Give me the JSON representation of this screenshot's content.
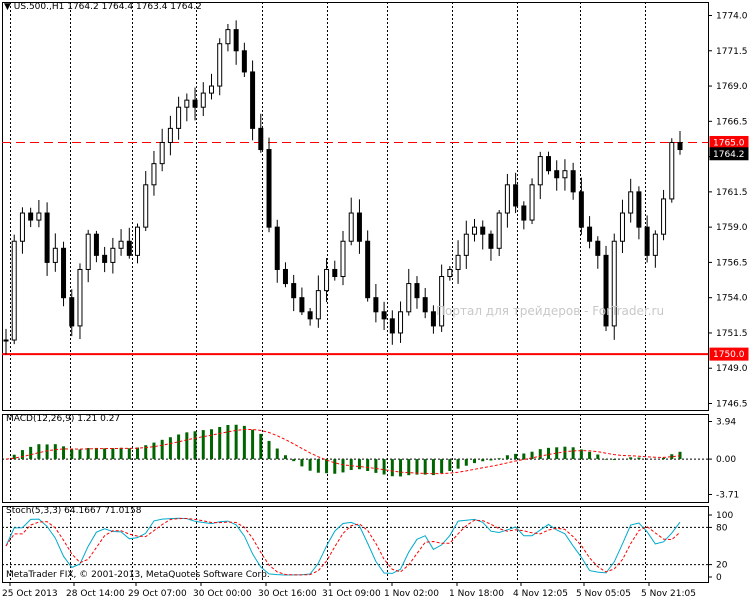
{
  "main_header": {
    "marker": "▼",
    "symbol": "US.500.,H1",
    "ohlc": "1764.2 1764.4 1763.4 1764.2"
  },
  "price_axis_labels": [
    "1774.0",
    "1771.5",
    "1769.0",
    "1766.5",
    "1764.0",
    "1761.5",
    "1759.0",
    "1756.5",
    "1754.0",
    "1751.5",
    "1749.0",
    "1746.5"
  ],
  "level_tags": {
    "upper": "1765.0",
    "current": "1764.2",
    "lower": "1750.0"
  },
  "watermark": "Портал для трейдеров - ForTrader.ru",
  "macd": {
    "header": "MACD(12,26,9) 1.21 0.27",
    "axis": [
      "3.94",
      "0.00",
      "-3.71"
    ]
  },
  "stoch": {
    "header": "Stoch(5,3,3) 64.1667 71.0158",
    "axis": [
      "100",
      "80",
      "20",
      "0"
    ]
  },
  "copyright": "MetaTrader FIX, © 2001-2013, MetaQuotes Software Corp.",
  "time_labels": [
    "25 Oct 2013",
    "28 Oct 14:00",
    "29 Oct 07:00",
    "30 Oct 00:00",
    "30 Oct 16:00",
    "31 Oct 09:00",
    "1 Nov 02:00",
    "1 Nov 18:00",
    "4 Nov 12:05",
    "5 Nov 05:05",
    "5 Nov 21:05"
  ],
  "colors": {
    "bg": "#ffffff",
    "grid": "#000000",
    "level": "#ff0000",
    "macd_hist": "#006400",
    "signal": "#ff0000",
    "stoch_main": "#00aacc"
  },
  "chart_data": {
    "type": "candlestick",
    "timeframe": "H1",
    "ylim": [
      1746.5,
      1774.0
    ],
    "levels": {
      "dashed": 1765.0,
      "solid": 1750.0
    },
    "close_path": [
      1751,
      1758,
      1760,
      1759.5,
      1760,
      1756.5,
      1757.5,
      1754,
      1752,
      1756,
      1758.5,
      1757,
      1756.5,
      1757.5,
      1758,
      1757,
      1759,
      1762,
      1763.5,
      1765,
      1766,
      1767.5,
      1768,
      1767.5,
      1768.5,
      1769,
      1772,
      1773,
      1771.5,
      1770,
      1766,
      1764.5,
      1759,
      1756,
      1755,
      1754,
      1753,
      1752.5,
      1754.5,
      1756,
      1755.5,
      1758,
      1760,
      1758,
      1754,
      1753,
      1752.5,
      1751.5,
      1753,
      1755,
      1754,
      1753,
      1752,
      1755.5,
      1756,
      1757,
      1758.5,
      1759,
      1758.5,
      1757.5,
      1760,
      1762,
      1760.5,
      1759.5,
      1762,
      1764,
      1763,
      1762.5,
      1763,
      1761.5,
      1759,
      1758,
      1757,
      1752,
      1758,
      1760,
      1761.5,
      1759,
      1757,
      1758.5,
      1761,
      1765,
      1764.5
    ],
    "macd": {
      "range": [
        -3.71,
        3.94
      ],
      "last": 1.21,
      "signal_last": 0.27
    },
    "stoch": {
      "range": [
        0,
        100
      ],
      "levels": [
        20,
        80
      ],
      "main_last": 64.1667,
      "signal_last": 71.0158
    }
  }
}
